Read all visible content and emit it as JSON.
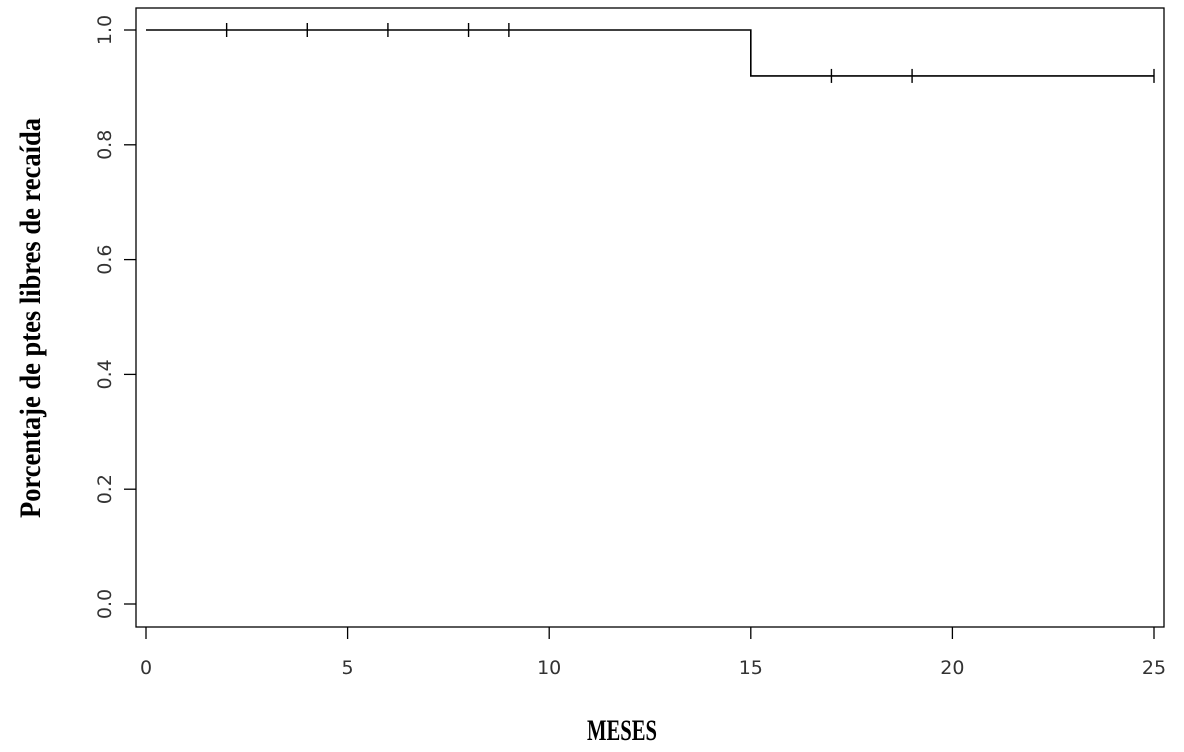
{
  "chart_data": {
    "type": "line",
    "style": "kaplan-meier-step",
    "title": "",
    "xlabel": "MESES",
    "ylabel": "Porcentaje de ptes libres de recaída",
    "xlim": [
      0,
      25
    ],
    "ylim": [
      0,
      1
    ],
    "x_ticks": [
      0,
      5,
      10,
      15,
      20,
      25
    ],
    "x_tick_labels": [
      "0",
      "5",
      "10",
      "15",
      "20",
      "25"
    ],
    "y_ticks": [
      0,
      0.2,
      0.4,
      0.6,
      0.8,
      1.0
    ],
    "y_tick_labels": [
      "0.0",
      "0.2",
      "0.4",
      "0.6",
      "0.8",
      "1.0"
    ],
    "grid": false,
    "legend": "none",
    "series": [
      {
        "steps": [
          {
            "x": 0,
            "y": 1.0
          },
          {
            "x": 15,
            "y": 0.92
          },
          {
            "x": 25,
            "y": 0.92
          }
        ],
        "censored": [
          {
            "x": 2,
            "y": 1.0
          },
          {
            "x": 4,
            "y": 1.0
          },
          {
            "x": 6,
            "y": 1.0
          },
          {
            "x": 8,
            "y": 1.0
          },
          {
            "x": 9,
            "y": 1.0
          },
          {
            "x": 17,
            "y": 0.92
          },
          {
            "x": 19,
            "y": 0.92
          },
          {
            "x": 25,
            "y": 0.92
          }
        ]
      }
    ]
  }
}
